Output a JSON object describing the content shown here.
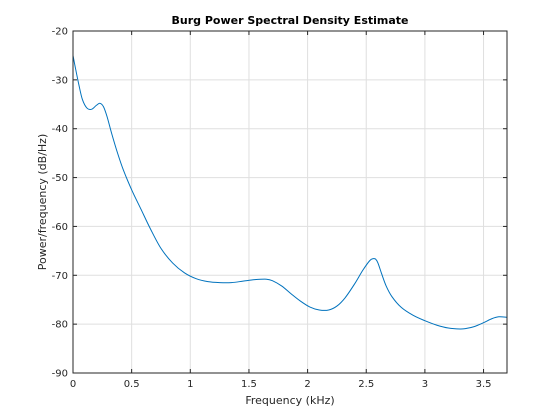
{
  "chart_data": {
    "type": "line",
    "title": "Burg Power Spectral Density Estimate",
    "xlabel": "Frequency (kHz)",
    "ylabel": "Power/frequency (dB/Hz)",
    "xlim": [
      0,
      3.7
    ],
    "ylim": [
      -90,
      -20
    ],
    "xticks": [
      0,
      0.5,
      1,
      1.5,
      2,
      2.5,
      3,
      3.5
    ],
    "xtick_labels": [
      "0",
      "0.5",
      "1",
      "1.5",
      "2",
      "2.5",
      "3",
      "3.5"
    ],
    "yticks": [
      -90,
      -80,
      -70,
      -60,
      -50,
      -40,
      -30,
      -20
    ],
    "ytick_labels": [
      "-90",
      "-80",
      "-70",
      "-60",
      "-50",
      "-40",
      "-30",
      "-20"
    ],
    "grid": true,
    "series": [
      {
        "color": "#0072bd",
        "x": [
          0,
          0.02,
          0.05,
          0.08,
          0.12,
          0.16,
          0.2,
          0.23,
          0.26,
          0.29,
          0.33,
          0.38,
          0.43,
          0.5,
          0.58,
          0.66,
          0.75,
          0.85,
          0.95,
          1.05,
          1.15,
          1.25,
          1.35,
          1.45,
          1.55,
          1.65,
          1.7,
          1.78,
          1.86,
          1.94,
          2.02,
          2.1,
          2.18,
          2.25,
          2.32,
          2.4,
          2.47,
          2.53,
          2.56,
          2.58,
          2.6,
          2.63,
          2.67,
          2.72,
          2.8,
          2.9,
          3.0,
          3.1,
          3.2,
          3.3,
          3.35,
          3.42,
          3.5,
          3.57,
          3.63,
          3.7
        ],
        "y": [
          -25,
          -27.5,
          -31,
          -34,
          -35.8,
          -36,
          -35.2,
          -34.8,
          -35.5,
          -37.5,
          -41,
          -45,
          -48.5,
          -52.5,
          -56.5,
          -60.5,
          -64.5,
          -67.5,
          -69.5,
          -70.7,
          -71.3,
          -71.5,
          -71.5,
          -71.2,
          -70.9,
          -70.8,
          -71.1,
          -72.2,
          -73.8,
          -75.3,
          -76.5,
          -77.1,
          -77.1,
          -76.3,
          -74.6,
          -71.8,
          -69.0,
          -67.0,
          -66.6,
          -66.7,
          -67.5,
          -69.6,
          -72.2,
          -74.4,
          -76.6,
          -78.2,
          -79.3,
          -80.2,
          -80.8,
          -81.0,
          -80.9,
          -80.5,
          -79.7,
          -78.9,
          -78.5,
          -78.6
        ]
      }
    ]
  }
}
